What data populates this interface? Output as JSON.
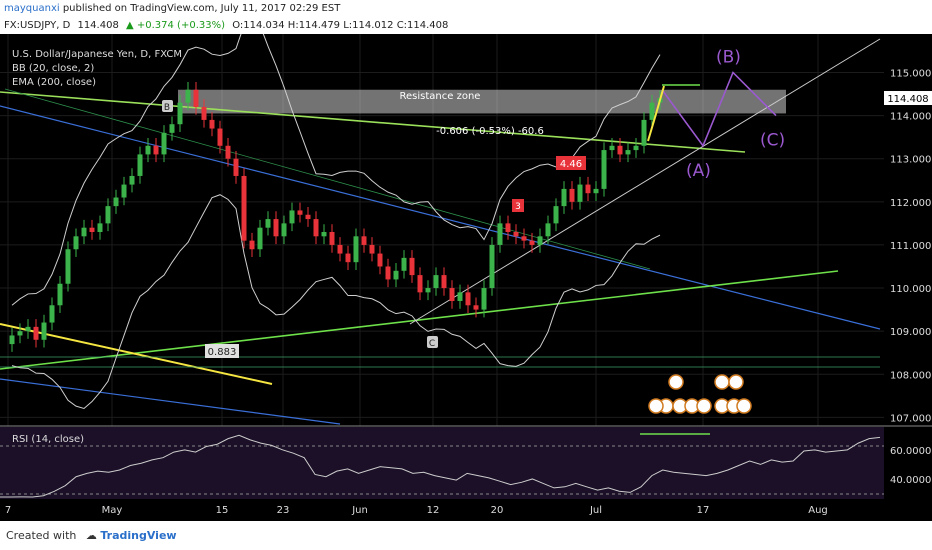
{
  "header": {
    "author": "mayquanxi",
    "published": "published on TradingView.com, July 11, 2017 02:29 EST"
  },
  "quote": {
    "symbol": "FX:USDJPY, D",
    "last": "114.408",
    "change": "▲ +0.374 (+0.33%)",
    "ohlc": "O:114.034 H:114.479 L:114.012 C:114.408"
  },
  "legend": {
    "name": "U.S. Dollar/Japanese Yen, D, FXCM",
    "bb": "BB (20, close, 2)",
    "ema": "EMA (200, close)"
  },
  "annotations": {
    "resistance": "Resistance zone",
    "measure": "-0.606 (-0.53%) -60.6",
    "wave_a": "(A)",
    "wave_b": "(B)",
    "wave_c": "(C)",
    "fib": "0.883",
    "badge_3": "3",
    "badge_446": "4.46",
    "mark_b": "B",
    "mark_c": "C"
  },
  "rsi": {
    "label": "RSI (14, close)",
    "ticks": [
      "60.0000",
      "40.0000"
    ]
  },
  "footer": {
    "created": "Created with",
    "brand": "TradingView"
  },
  "chart_data": {
    "type": "candlestick",
    "ylim": [
      106.8,
      115.8
    ],
    "yticks": [
      107,
      108,
      109,
      110,
      111,
      112,
      113,
      114,
      115
    ],
    "ytick_labels": [
      "107.000",
      "108.000",
      "109.000",
      "110.000",
      "111.000",
      "112.000",
      "113.000",
      "114.000",
      "115.000"
    ],
    "last_price": 114.408,
    "xticks": [
      "7",
      "May",
      "15",
      "23",
      "Jun",
      "12",
      "20",
      "Jul",
      "17",
      "Aug"
    ],
    "resistance_zone": [
      114.05,
      114.6
    ],
    "colors": {
      "up": "#3cb44b",
      "down": "#e8333a",
      "bg": "#000000",
      "elliott": "#9b59d0",
      "yellow": "#f5e642"
    },
    "closes": [
      108.9,
      109.0,
      109.1,
      108.8,
      109.2,
      109.6,
      110.1,
      110.9,
      111.2,
      111.4,
      111.3,
      111.5,
      111.9,
      112.1,
      112.4,
      112.6,
      113.1,
      113.3,
      113.1,
      113.6,
      113.8,
      114.3,
      114.6,
      114.2,
      113.9,
      113.7,
      113.3,
      113.0,
      112.6,
      111.1,
      110.9,
      111.4,
      111.6,
      111.2,
      111.5,
      111.8,
      111.7,
      111.6,
      111.2,
      111.3,
      111.0,
      110.8,
      110.6,
      111.2,
      111.0,
      110.8,
      110.5,
      110.2,
      110.4,
      110.7,
      110.3,
      109.9,
      110.0,
      110.3,
      110.0,
      109.7,
      109.9,
      109.6,
      109.5,
      110.0,
      111.0,
      111.5,
      111.3,
      111.2,
      111.1,
      111.0,
      111.2,
      111.5,
      111.9,
      112.3,
      112.0,
      112.4,
      112.2,
      112.3,
      113.2,
      113.3,
      113.1,
      113.2,
      113.3,
      113.9,
      114.3,
      114.408
    ],
    "elliott_path": [
      [
        114.6,
        "A"
      ],
      [
        113.3,
        "B"
      ],
      [
        115.0,
        "C"
      ],
      [
        114.0,
        ""
      ]
    ]
  }
}
